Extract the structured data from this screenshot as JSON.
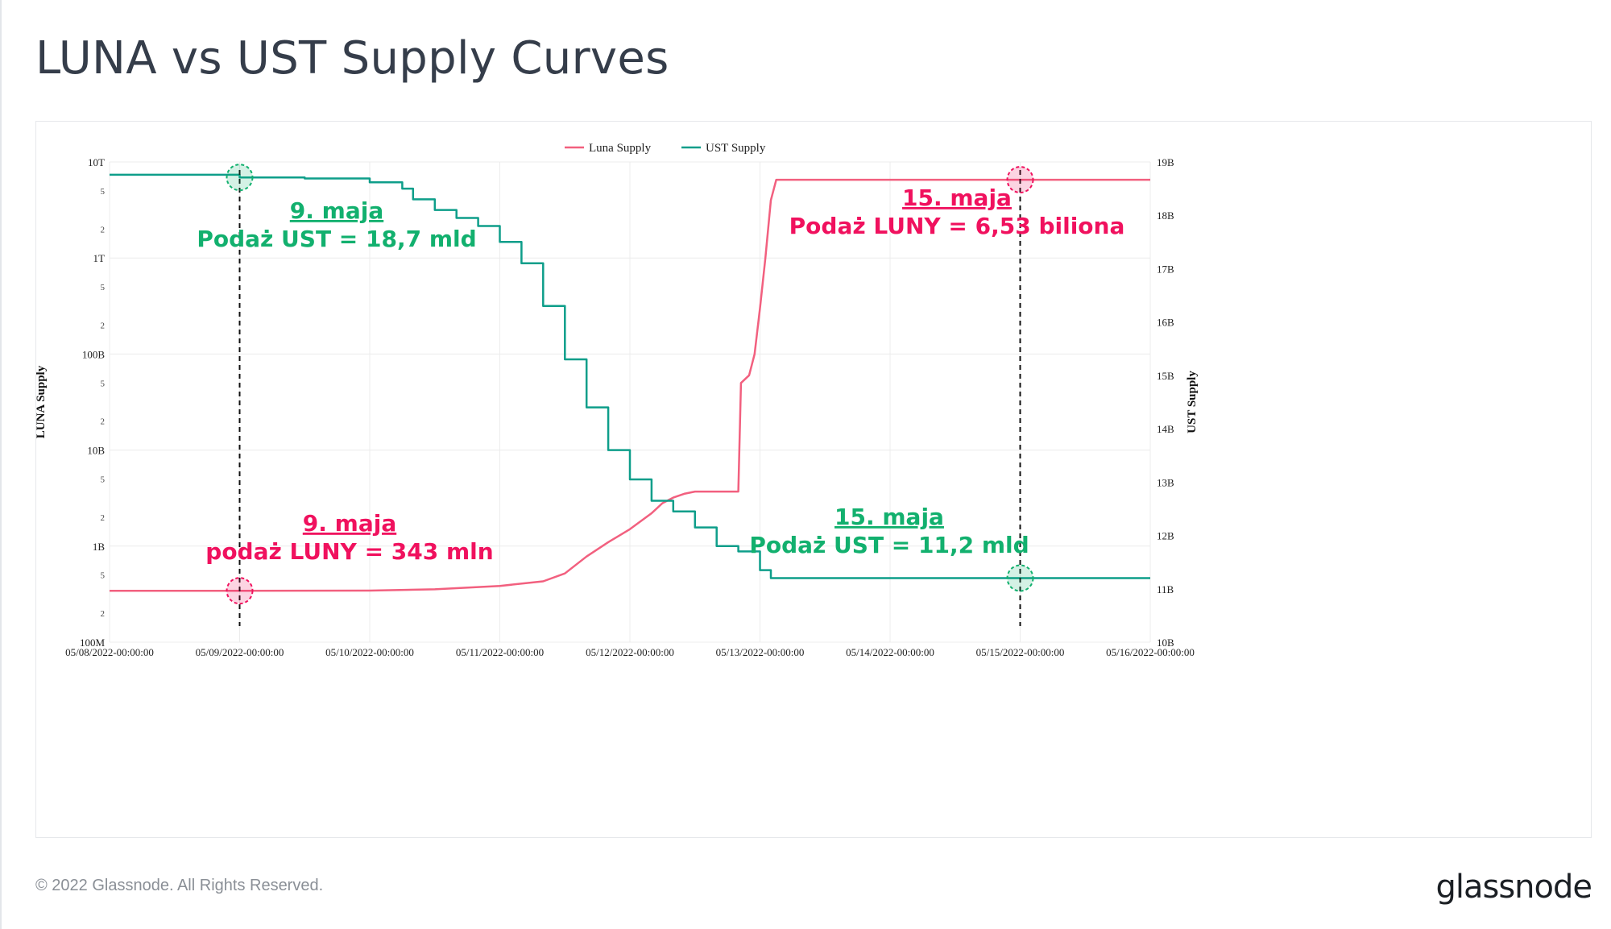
{
  "page": {
    "title": "LUNA vs UST Supply Curves",
    "copyright": "© 2022 Glassnode. All Rights Reserved.",
    "brand": "glassnode"
  },
  "colors": {
    "luna": "#f2607f",
    "ust": "#0e9e8a",
    "annotation_green": "#12b06e",
    "annotation_pink": "#f0115e"
  },
  "chart_data": {
    "type": "line",
    "title": "LUNA vs UST Supply Curves",
    "legend": [
      "Luna Supply",
      "UST Supply"
    ],
    "legend_position": "top-center",
    "grid": true,
    "x_tick_labels": [
      "05/08/2022-00:00:00",
      "05/09/2022-00:00:00",
      "05/10/2022-00:00:00",
      "05/11/2022-00:00:00",
      "05/12/2022-00:00:00",
      "05/13/2022-00:00:00",
      "05/14/2022-00:00:00",
      "05/15/2022-00:00:00",
      "05/16/2022-00:00:00"
    ],
    "y_left": {
      "label": "LUNA Supply",
      "scale": "log",
      "range": [
        100000000,
        10000000000000
      ],
      "major_ticks": [
        {
          "value": 100000000,
          "label": "100M"
        },
        {
          "value": 1000000000,
          "label": "1B"
        },
        {
          "value": 10000000000,
          "label": "10B"
        },
        {
          "value": 100000000000,
          "label": "100B"
        },
        {
          "value": 1000000000000,
          "label": "1T"
        },
        {
          "value": 10000000000000,
          "label": "10T"
        }
      ],
      "minor_tick_labels": [
        "2",
        "5"
      ]
    },
    "y_right": {
      "label": "UST Supply",
      "scale": "linear",
      "range": [
        10000000000,
        19000000000
      ],
      "ticks": [
        {
          "value": 10000000000,
          "label": "10B"
        },
        {
          "value": 11000000000,
          "label": "11B"
        },
        {
          "value": 12000000000,
          "label": "12B"
        },
        {
          "value": 13000000000,
          "label": "13B"
        },
        {
          "value": 14000000000,
          "label": "14B"
        },
        {
          "value": 15000000000,
          "label": "15B"
        },
        {
          "value": 16000000000,
          "label": "16B"
        },
        {
          "value": 17000000000,
          "label": "17B"
        },
        {
          "value": 18000000000,
          "label": "18B"
        },
        {
          "value": 19000000000,
          "label": "19B"
        }
      ]
    },
    "series": [
      {
        "name": "Luna Supply",
        "axis": "left",
        "points": [
          [
            "2022-05-08 00:00",
            343000000
          ],
          [
            "2022-05-09 00:00",
            343000000
          ],
          [
            "2022-05-10 00:00",
            344000000
          ],
          [
            "2022-05-10 12:00",
            355000000
          ],
          [
            "2022-05-11 00:00",
            385000000
          ],
          [
            "2022-05-11 08:00",
            430000000
          ],
          [
            "2022-05-11 12:00",
            520000000
          ],
          [
            "2022-05-11 16:00",
            780000000
          ],
          [
            "2022-05-11 20:00",
            1100000000
          ],
          [
            "2022-05-12 00:00",
            1500000000
          ],
          [
            "2022-05-12 04:00",
            2200000000
          ],
          [
            "2022-05-12 06:00",
            2800000000
          ],
          [
            "2022-05-12 08:00",
            3200000000
          ],
          [
            "2022-05-12 10:00",
            3500000000
          ],
          [
            "2022-05-12 12:00",
            3700000000
          ],
          [
            "2022-05-12 16:00",
            3700000000
          ],
          [
            "2022-05-12 20:00",
            3700000000
          ],
          [
            "2022-05-12 20:30",
            50000000000
          ],
          [
            "2022-05-12 22:00",
            60000000000
          ],
          [
            "2022-05-12 23:00",
            100000000000
          ],
          [
            "2022-05-13 00:00",
            300000000000
          ],
          [
            "2022-05-13 01:00",
            1000000000000
          ],
          [
            "2022-05-13 02:00",
            4000000000000
          ],
          [
            "2022-05-13 03:00",
            6530000000000
          ],
          [
            "2022-05-14 00:00",
            6530000000000
          ],
          [
            "2022-05-15 00:00",
            6530000000000
          ],
          [
            "2022-05-16 00:00",
            6530000000000
          ]
        ]
      },
      {
        "name": "UST Supply",
        "axis": "right",
        "points": [
          [
            "2022-05-08 00:00",
            18760000000
          ],
          [
            "2022-05-09 00:00",
            18710000000
          ],
          [
            "2022-05-09 12:00",
            18690000000
          ],
          [
            "2022-05-10 00:00",
            18620000000
          ],
          [
            "2022-05-10 06:00",
            18500000000
          ],
          [
            "2022-05-10 08:00",
            18300000000
          ],
          [
            "2022-05-10 12:00",
            18100000000
          ],
          [
            "2022-05-10 16:00",
            17950000000
          ],
          [
            "2022-05-10 20:00",
            17800000000
          ],
          [
            "2022-05-11 00:00",
            17500000000
          ],
          [
            "2022-05-11 04:00",
            17100000000
          ],
          [
            "2022-05-11 08:00",
            16300000000
          ],
          [
            "2022-05-11 12:00",
            15300000000
          ],
          [
            "2022-05-11 16:00",
            14400000000
          ],
          [
            "2022-05-11 20:00",
            13600000000
          ],
          [
            "2022-05-12 00:00",
            13050000000
          ],
          [
            "2022-05-12 04:00",
            12650000000
          ],
          [
            "2022-05-12 08:00",
            12450000000
          ],
          [
            "2022-05-12 12:00",
            12150000000
          ],
          [
            "2022-05-12 16:00",
            11800000000
          ],
          [
            "2022-05-12 20:00",
            11700000000
          ],
          [
            "2022-05-13 00:00",
            11350000000
          ],
          [
            "2022-05-13 02:00",
            11200000000
          ],
          [
            "2022-05-14 00:00",
            11200000000
          ],
          [
            "2022-05-15 00:00",
            11200000000
          ],
          [
            "2022-05-16 00:00",
            11200000000
          ]
        ]
      }
    ],
    "annotations": [
      {
        "date_label": "9. maja",
        "text": "Podaż UST = 18,7 mld",
        "series": "UST Supply",
        "at": [
          "2022-05-09 00:00",
          18710000000
        ]
      },
      {
        "date_label": "9. maja",
        "text": "podaż LUNY = 343 mln",
        "series": "Luna Supply",
        "at": [
          "2022-05-09 00:00",
          343000000
        ]
      },
      {
        "date_label": "15. maja",
        "text": "Podaż LUNY = 6,53 biliona",
        "series": "Luna Supply",
        "at": [
          "2022-05-15 00:00",
          6530000000000
        ]
      },
      {
        "date_label": "15. maja",
        "text": "Podaż UST = 11,2 mld",
        "series": "UST Supply",
        "at": [
          "2022-05-15 00:00",
          11200000000
        ]
      }
    ]
  }
}
